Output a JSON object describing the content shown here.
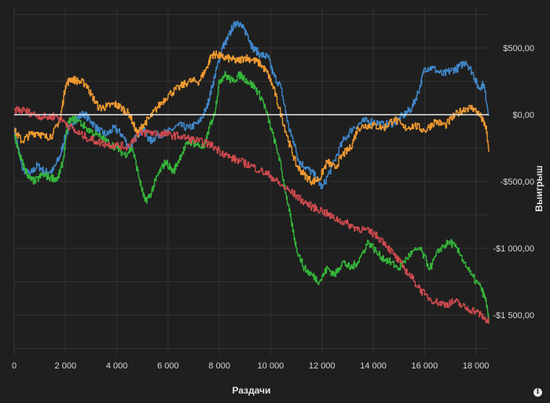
{
  "chart_data": {
    "type": "line",
    "title": "",
    "xlabel": "Раздачи",
    "ylabel": "Выигрыш",
    "xlim": [
      0,
      18500
    ],
    "ylim": [
      -1800,
      800
    ],
    "x_ticks": [
      0,
      2000,
      4000,
      6000,
      8000,
      10000,
      12000,
      14000,
      16000,
      18000
    ],
    "x_tick_labels": [
      "0",
      "2 000",
      "4 000",
      "6 000",
      "8 000",
      "10 000",
      "12 000",
      "14 000",
      "16 000",
      "18 000"
    ],
    "y_ticks": [
      500,
      0,
      -500,
      -1000,
      -1500
    ],
    "y_tick_labels": [
      "$500,00",
      "$0,00",
      "-$500,00",
      "-$1 000,00",
      "-$1 500,00"
    ],
    "grid": true,
    "legend": "none",
    "zero_line_color": "#e8e8e8",
    "series": [
      {
        "color": "#3f86c8",
        "x": [
          0,
          300,
          600,
          900,
          1200,
          1500,
          1800,
          2000,
          2300,
          2700,
          3000,
          3300,
          3600,
          3900,
          4200,
          4500,
          4800,
          5000,
          5300,
          5600,
          6000,
          6400,
          6800,
          7200,
          7500,
          7700,
          7900,
          8100,
          8300,
          8500,
          8700,
          8900,
          9100,
          9300,
          9600,
          9900,
          10100,
          10400,
          10700,
          10900,
          11100,
          11400,
          11700,
          12000,
          12400,
          12800,
          13200,
          13600,
          14000,
          14400,
          14800,
          15200,
          15500,
          15800,
          16000,
          16300,
          16700,
          17000,
          17300,
          17600,
          17900,
          18100,
          18300,
          18500
        ],
        "y": [
          -100,
          -400,
          -450,
          -380,
          -430,
          -420,
          -300,
          -150,
          -50,
          10,
          -50,
          -120,
          -150,
          -100,
          -150,
          -250,
          -150,
          -100,
          -200,
          -150,
          -130,
          -80,
          -100,
          -60,
          50,
          200,
          350,
          500,
          560,
          650,
          700,
          650,
          600,
          500,
          450,
          430,
          300,
          200,
          -100,
          -200,
          -350,
          -400,
          -450,
          -550,
          -380,
          -200,
          -100,
          -50,
          -50,
          -80,
          -60,
          0,
          50,
          200,
          350,
          350,
          300,
          330,
          350,
          400,
          300,
          200,
          230,
          0
        ]
      },
      {
        "color": "#ef9a31",
        "x": [
          0,
          300,
          600,
          900,
          1200,
          1500,
          1800,
          2000,
          2200,
          2500,
          2800,
          3000,
          3300,
          3600,
          3900,
          4200,
          4500,
          4800,
          5000,
          5300,
          5600,
          6000,
          6400,
          6800,
          7200,
          7500,
          7700,
          7900,
          8100,
          8400,
          8700,
          9000,
          9300,
          9600,
          9900,
          10100,
          10400,
          10700,
          11000,
          11300,
          11600,
          11900,
          12200,
          12500,
          12800,
          13100,
          13400,
          13700,
          14000,
          14400,
          14800,
          15200,
          15600,
          16000,
          16400,
          16800,
          17200,
          17600,
          17900,
          18200,
          18400,
          18500
        ],
        "y": [
          -120,
          -200,
          -150,
          -130,
          -170,
          -150,
          -20,
          220,
          270,
          250,
          230,
          150,
          50,
          60,
          80,
          50,
          0,
          -150,
          -80,
          -20,
          60,
          150,
          200,
          250,
          250,
          350,
          450,
          450,
          430,
          420,
          400,
          430,
          410,
          380,
          300,
          200,
          0,
          -200,
          -380,
          -450,
          -500,
          -480,
          -350,
          -400,
          -300,
          -250,
          -100,
          -80,
          -80,
          -100,
          -30,
          -100,
          -80,
          -120,
          -50,
          -80,
          0,
          50,
          50,
          -20,
          -100,
          -280
        ]
      },
      {
        "color": "#35b53a",
        "x": [
          0,
          200,
          400,
          600,
          800,
          1100,
          1400,
          1700,
          1900,
          2100,
          2400,
          2800,
          3200,
          3600,
          4000,
          4300,
          4600,
          4900,
          5100,
          5300,
          5600,
          5900,
          6200,
          6500,
          6800,
          7100,
          7400,
          7600,
          7800,
          8000,
          8200,
          8500,
          8800,
          9100,
          9400,
          9700,
          10000,
          10300,
          10600,
          10800,
          11000,
          11300,
          11600,
          11900,
          12200,
          12500,
          12800,
          13100,
          13400,
          13800,
          14200,
          14600,
          15000,
          15400,
          15800,
          16200,
          16600,
          17000,
          17400,
          17800,
          18200,
          18400,
          18500
        ],
        "y": [
          -150,
          -300,
          -400,
          -480,
          -500,
          -450,
          -470,
          -480,
          -350,
          -50,
          -30,
          -100,
          -150,
          -200,
          -250,
          -300,
          -250,
          -500,
          -650,
          -600,
          -450,
          -350,
          -430,
          -300,
          -200,
          -220,
          -250,
          -100,
          0,
          250,
          300,
          250,
          300,
          250,
          200,
          100,
          -100,
          -300,
          -600,
          -800,
          -1000,
          -1150,
          -1200,
          -1250,
          -1150,
          -1200,
          -1100,
          -1150,
          -1100,
          -950,
          -1050,
          -1100,
          -1150,
          -1050,
          -1000,
          -1150,
          -1000,
          -950,
          -1050,
          -1200,
          -1300,
          -1400,
          -1550
        ]
      },
      {
        "color": "#d04a4e",
        "x": [
          0,
          400,
          800,
          1200,
          1600,
          2000,
          2400,
          2800,
          3200,
          3600,
          4000,
          4400,
          4800,
          5200,
          5600,
          6000,
          6400,
          6800,
          7200,
          7600,
          8000,
          8400,
          8800,
          9200,
          9600,
          10000,
          10400,
          10800,
          11200,
          11600,
          12000,
          12400,
          12800,
          13200,
          13600,
          14000,
          14400,
          14800,
          15200,
          15600,
          16000,
          16400,
          16800,
          17200,
          17600,
          18000,
          18300,
          18500
        ],
        "y": [
          40,
          30,
          0,
          -20,
          -10,
          -60,
          -130,
          -170,
          -200,
          -220,
          -230,
          -240,
          -150,
          -130,
          -140,
          -150,
          -160,
          -180,
          -200,
          -220,
          -270,
          -320,
          -350,
          -380,
          -420,
          -460,
          -530,
          -580,
          -640,
          -690,
          -720,
          -770,
          -800,
          -840,
          -860,
          -890,
          -950,
          -1050,
          -1150,
          -1250,
          -1350,
          -1400,
          -1420,
          -1400,
          -1450,
          -1470,
          -1520,
          -1550
        ]
      }
    ]
  }
}
